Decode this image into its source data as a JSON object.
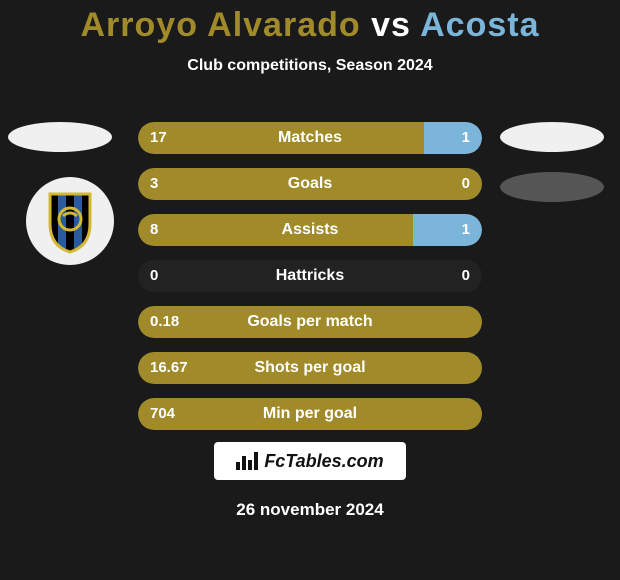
{
  "title": {
    "player1": "Arroyo Alvarado",
    "vs": " vs ",
    "player2": "Acosta",
    "player1_color": "#a08a2a",
    "player2_color": "#7bb5d9"
  },
  "subtitle": "Club competitions, Season 2024",
  "colors": {
    "bar_left": "#a08a2a",
    "bar_right": "#7bb5d9",
    "bar_bg": "rgba(255,255,255,0.04)"
  },
  "club_badge": {
    "outer": "#f0f0f0",
    "stripes": [
      "#000000",
      "#2a5aa0",
      "#000000",
      "#2a5aa0",
      "#000000"
    ],
    "ring": "#d4b830"
  },
  "stats": [
    {
      "label": "Matches",
      "left_val": "17",
      "right_val": "1",
      "left_pct": 83,
      "right_pct": 17
    },
    {
      "label": "Goals",
      "left_val": "3",
      "right_val": "0",
      "left_pct": 100,
      "right_pct": 0
    },
    {
      "label": "Assists",
      "left_val": "8",
      "right_val": "1",
      "left_pct": 80,
      "right_pct": 20
    },
    {
      "label": "Hattricks",
      "left_val": "0",
      "right_val": "0",
      "left_pct": 0,
      "right_pct": 0
    },
    {
      "label": "Goals per match",
      "left_val": "0.18",
      "right_val": "",
      "left_pct": 100,
      "right_pct": 0
    },
    {
      "label": "Shots per goal",
      "left_val": "16.67",
      "right_val": "",
      "left_pct": 100,
      "right_pct": 0
    },
    {
      "label": "Min per goal",
      "left_val": "704",
      "right_val": "",
      "left_pct": 100,
      "right_pct": 0
    }
  ],
  "footer_brand": "FcTables.com",
  "date": "26 november 2024"
}
